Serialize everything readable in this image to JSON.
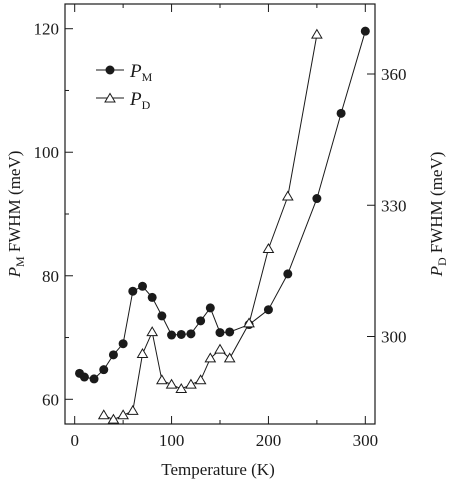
{
  "chart_data": {
    "type": "line",
    "xlabel": "Temperature (K)",
    "ylabel_left": {
      "symbol": "P",
      "subscript": "M",
      "text": " FWHM (meV)"
    },
    "ylabel_right": {
      "symbol": "P",
      "subscript": "D",
      "text": " FWHM (meV)"
    },
    "xlim": [
      -10,
      310
    ],
    "ylim_left": [
      56,
      124
    ],
    "ylim_right": [
      280,
      376
    ],
    "x_ticks": [
      0,
      100,
      200,
      300
    ],
    "x_minor_ticks": [
      50,
      150,
      250
    ],
    "y_left_ticks": [
      60,
      80,
      100,
      120
    ],
    "y_left_minor_ticks": [
      70,
      90,
      110
    ],
    "y_right_ticks": [
      300,
      330,
      360
    ],
    "legend_position": "top-left",
    "series": [
      {
        "name": "P",
        "name_subscript": "M",
        "axis": "left",
        "marker": "filled-circle",
        "x": [
          5,
          10,
          20,
          30,
          40,
          50,
          60,
          70,
          80,
          90,
          100,
          110,
          120,
          130,
          140,
          150,
          160,
          180,
          200,
          220,
          250,
          275,
          300
        ],
        "y": [
          64.2,
          63.6,
          63.3,
          64.8,
          67.2,
          69.0,
          77.5,
          78.3,
          76.5,
          73.5,
          70.4,
          70.5,
          70.6,
          72.7,
          74.8,
          70.8,
          70.9,
          72.1,
          74.5,
          80.3,
          92.5,
          106.3,
          119.6
        ]
      },
      {
        "name": "P",
        "name_subscript": "D",
        "axis": "right",
        "marker": "open-triangle",
        "x": [
          30,
          40,
          50,
          60,
          70,
          80,
          90,
          100,
          110,
          120,
          130,
          140,
          150,
          160,
          180,
          200,
          220,
          250
        ],
        "y": [
          282,
          281,
          282,
          283,
          296,
          301,
          290,
          289,
          288,
          289,
          290,
          295,
          297,
          295,
          303,
          320,
          332,
          369
        ]
      }
    ]
  }
}
